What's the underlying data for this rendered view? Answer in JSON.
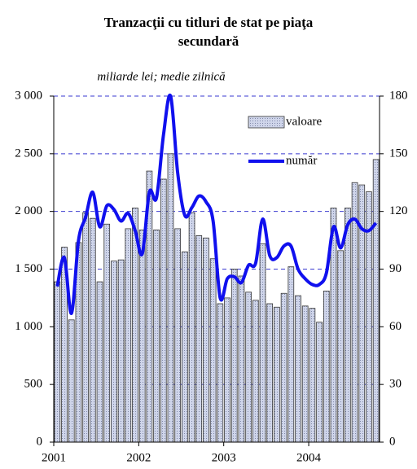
{
  "chart_data": {
    "type": "bar_line",
    "title": "Tranzacţii cu titluri de stat pe piaţa secundară",
    "subtitle": "miliarde lei; medie zilnică",
    "categories": [
      "2001",
      null,
      null,
      null,
      null,
      null,
      null,
      null,
      null,
      null,
      null,
      null,
      "2002",
      null,
      null,
      null,
      null,
      null,
      null,
      null,
      null,
      null,
      null,
      null,
      "2003",
      null,
      null,
      null,
      null,
      null,
      null,
      null,
      null,
      null,
      null,
      null,
      "2004",
      null,
      null,
      null,
      null,
      null,
      null,
      null,
      null,
      null
    ],
    "series": [
      {
        "name": "valoare",
        "type": "bar",
        "color": "#cfd5ea",
        "axis": "y",
        "values": [
          1390,
          1690,
          1060,
          1730,
          1990,
          1940,
          1390,
          1890,
          1570,
          1580,
          1850,
          2030,
          1840,
          2350,
          1840,
          2280,
          2500,
          1850,
          1650,
          1990,
          1790,
          1770,
          1590,
          1200,
          1250,
          1500,
          1440,
          1300,
          1230,
          1720,
          1200,
          1170,
          1290,
          1520,
          1270,
          1180,
          1160,
          1040,
          1310,
          2030,
          1660,
          2030,
          2250,
          2230,
          2170,
          2450
        ]
      },
      {
        "name": "număr",
        "type": "line",
        "color": "#1010ee",
        "axis": "y2",
        "values": [
          81,
          96,
          67,
          105,
          117,
          130,
          112,
          123,
          121,
          115,
          119,
          110,
          98,
          130,
          127,
          160,
          180,
          140,
          118,
          122,
          128,
          125,
          115,
          75,
          85,
          86,
          83,
          92,
          93,
          116,
          97,
          96,
          102,
          102,
          90,
          85,
          82,
          82,
          88,
          112,
          101,
          113,
          116,
          111,
          110,
          114
        ]
      }
    ],
    "ylim": [
      0,
      3000
    ],
    "yticks": [
      0,
      500,
      {
        "value": 1000,
        "label": "1 000"
      },
      {
        "value": 1500,
        "label": "1 500"
      },
      {
        "value": 2000,
        "label": "2 000"
      },
      {
        "value": 2500,
        "label": "2 500"
      },
      {
        "value": 3000,
        "label": "3 000"
      }
    ],
    "y2lim": [
      0,
      180
    ],
    "y2ticks": [
      0,
      30,
      60,
      90,
      120,
      150,
      180
    ],
    "grid": true,
    "grid_color": "#3a3ad0",
    "legend": "upper right"
  }
}
